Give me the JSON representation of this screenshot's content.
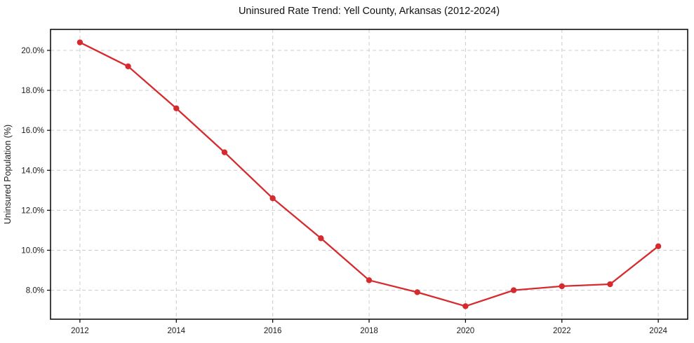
{
  "figure": {
    "background": "#ffffff"
  },
  "chart_data": {
    "type": "line",
    "title": "Uninsured Rate Trend: Yell County, Arkansas (2012-2024)",
    "xlabel": "",
    "ylabel": "Uninsured Population (%)",
    "x": [
      2012,
      2013,
      2014,
      2015,
      2016,
      2017,
      2018,
      2019,
      2020,
      2021,
      2022,
      2023,
      2024
    ],
    "series": [
      {
        "name": "Uninsured rate",
        "values": [
          20.4,
          19.2,
          17.1,
          14.9,
          12.6,
          10.6,
          8.5,
          7.9,
          7.2,
          8.0,
          8.2,
          8.3,
          10.2
        ]
      }
    ],
    "x_ticks": [
      2012,
      2014,
      2016,
      2018,
      2020,
      2022,
      2024
    ],
    "x_tick_labels": [
      "2012",
      "2014",
      "2016",
      "2018",
      "2020",
      "2022",
      "2024"
    ],
    "y_ticks": [
      8,
      10,
      12,
      14,
      16,
      18,
      20
    ],
    "y_tick_labels": [
      "8.0%",
      "10.0%",
      "12.0%",
      "14.0%",
      "16.0%",
      "18.0%",
      "20.0%"
    ],
    "xlim": [
      2011.39,
      2024.61
    ],
    "ylim": [
      6.55,
      21.05
    ],
    "grid": true,
    "legend": "none",
    "line_color": "#d62b2e",
    "marker": "circle",
    "grid_color": "#cccccc",
    "frame_color": "#000000",
    "tick_label_color": "#1a1a1a",
    "title_color": "#111111"
  }
}
